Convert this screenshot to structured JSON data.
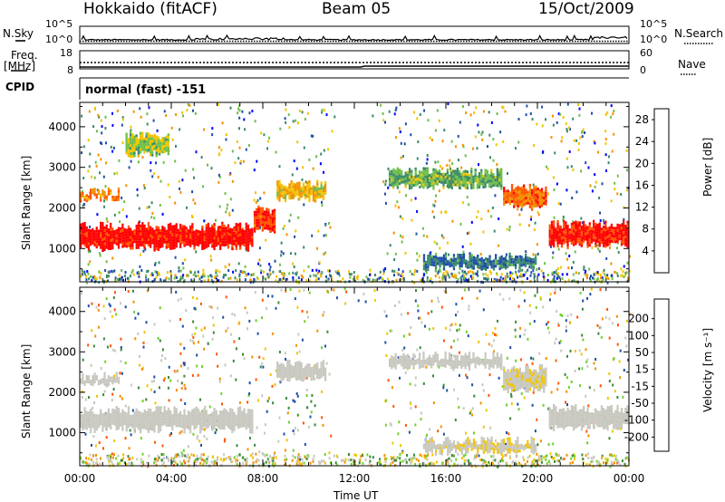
{
  "header": {
    "station": "Hokkaido (fitACF)",
    "beam": "Beam 05",
    "date": "15/Oct/2009"
  },
  "strip_panels": {
    "nsky_label": "N.Sky",
    "nsearch_label": "N.Search",
    "nsky_ticks": [
      "10^5",
      "10^0"
    ],
    "nsearch_ticks": [
      "10^5",
      "10^0"
    ],
    "freq_label": "Freq.",
    "freq_unit": "[MHz]",
    "freq_ticks": [
      "18",
      "8"
    ],
    "nave_label": "Nave",
    "nave_ticks": [
      "60",
      "0"
    ],
    "cpid_label": "CPID",
    "cpid_value": "normal (fast) -151"
  },
  "colors": {
    "power_scale": [
      "#0000ff",
      "#1f4fa8",
      "#3b8a6a",
      "#6fbf4a",
      "#f2c400",
      "#f39200",
      "#ff5500",
      "#ff0000"
    ],
    "velocity_scale": [
      "#ff0000",
      "#ff5500",
      "#f39200",
      "#f2c400",
      "#c8c8c0",
      "#c8c8c0",
      "#6fd22a",
      "#3b8a3a",
      "#1f4fa8",
      "#1a3ba8"
    ]
  },
  "chart_data": [
    {
      "type": "heatmap",
      "panel": "power",
      "ylabel": "Slant Range [km]",
      "xlabel": "Time UT",
      "x_ticks": [
        "00:00",
        "04:00",
        "08:00",
        "12:00",
        "16:00",
        "20:00",
        "00:00"
      ],
      "y_ticks": [
        1000,
        2000,
        3000,
        4000
      ],
      "ylim": [
        180,
        4600
      ],
      "xlim_hours": [
        0,
        24
      ],
      "colorbar": {
        "label": "Power [dB]",
        "ticks": [
          4,
          8,
          12,
          16,
          20,
          24,
          28
        ],
        "range": [
          0,
          30
        ]
      },
      "regions": [
        {
          "t": [
            0,
            7.6
          ],
          "r": [
            1000,
            1550
          ],
          "value": 29
        },
        {
          "t": [
            7.6,
            8.6
          ],
          "r": [
            1400,
            1950
          ],
          "value": 26
        },
        {
          "t": [
            8.6,
            10.8
          ],
          "r": [
            2200,
            2600
          ],
          "value": 18
        },
        {
          "t": [
            0,
            1.8
          ],
          "r": [
            2200,
            2400
          ],
          "value": 22
        },
        {
          "t": [
            13.5,
            18.5
          ],
          "r": [
            2500,
            2900
          ],
          "value": 12
        },
        {
          "t": [
            18.5,
            20.5
          ],
          "r": [
            2000,
            2500
          ],
          "value": 24
        },
        {
          "t": [
            20.5,
            24
          ],
          "r": [
            1050,
            1600
          ],
          "value": 28
        },
        {
          "t": [
            15,
            20
          ],
          "r": [
            500,
            800
          ],
          "value": 8
        },
        {
          "t": [
            2,
            4
          ],
          "r": [
            3300,
            3800
          ],
          "value": 14
        }
      ]
    },
    {
      "type": "heatmap",
      "panel": "velocity",
      "ylabel": "Slant Range [km]",
      "xlabel": "Time UT",
      "x_ticks": [
        "00:00",
        "04:00",
        "08:00",
        "12:00",
        "16:00",
        "20:00",
        "00:00"
      ],
      "y_ticks": [
        1000,
        2000,
        3000,
        4000
      ],
      "ylim": [
        180,
        4600
      ],
      "xlim_hours": [
        0,
        24
      ],
      "colorbar": {
        "label": "Velocity [m s⁻¹]",
        "ticks": [
          "200",
          "100",
          "50",
          "15",
          "-15",
          "-50",
          "-100",
          "-200"
        ],
        "range": [
          -250,
          250
        ]
      },
      "regions": [
        {
          "t": [
            0,
            7.6
          ],
          "r": [
            1050,
            1550
          ],
          "value": 0
        },
        {
          "t": [
            0,
            1.8
          ],
          "r": [
            2200,
            2400
          ],
          "value": 0
        },
        {
          "t": [
            8.6,
            10.8
          ],
          "r": [
            2300,
            2700
          ],
          "value": 0
        },
        {
          "t": [
            13.5,
            18.5
          ],
          "r": [
            2600,
            2900
          ],
          "value": 0
        },
        {
          "t": [
            18.5,
            20.5
          ],
          "r": [
            2000,
            2600
          ],
          "value": 40
        },
        {
          "t": [
            20.5,
            24
          ],
          "r": [
            1100,
            1600
          ],
          "value": 0
        },
        {
          "t": [
            15,
            20
          ],
          "r": [
            500,
            800
          ],
          "value": 40
        }
      ]
    }
  ]
}
